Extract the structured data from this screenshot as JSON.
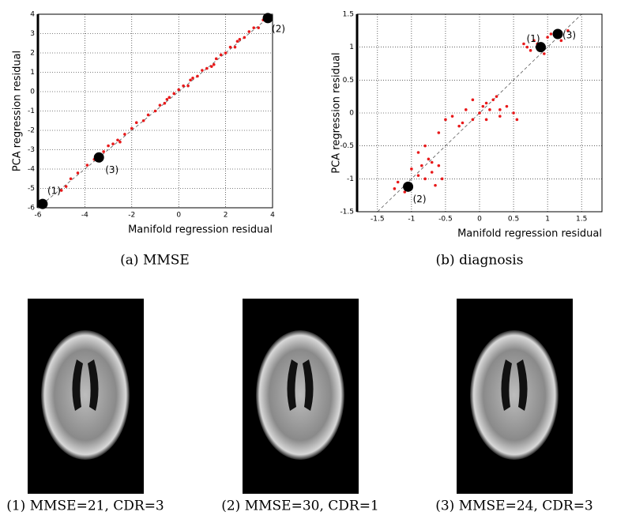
{
  "chart_data": [
    {
      "type": "scatter",
      "caption": "(a) MMSE",
      "xlabel": "Manifold regression residual",
      "ylabel": "PCA regression residual",
      "xlim": [
        -6,
        4
      ],
      "ylim": [
        -6,
        4
      ],
      "xticks": [
        -6,
        -4,
        -2,
        0,
        2,
        4
      ],
      "yticks": [
        -6,
        -5,
        -4,
        -3,
        -2,
        -1,
        0,
        1,
        2,
        3,
        4
      ],
      "grid": true,
      "diagonal": true,
      "series": [
        {
          "color": "#e8191a",
          "x": [
            -5,
            -4.8,
            -4.6,
            -4.3,
            -3.9,
            -3.6,
            -3.2,
            -3.0,
            -2.8,
            -2.5,
            -2.3,
            -2.0,
            -1.8,
            -1.5,
            -1.3,
            -1.0,
            -0.8,
            -0.6,
            -0.4,
            -0.2,
            0,
            0.2,
            0.4,
            0.6,
            0.8,
            1.0,
            1.2,
            1.4,
            1.6,
            1.8,
            2.0,
            2.2,
            2.4,
            2.6,
            2.8,
            3.0,
            3.2,
            3.4,
            3.6,
            0.5,
            -0.5,
            1.5,
            -2.6,
            2.5
          ],
          "values": [
            -5.1,
            -4.9,
            -4.5,
            -4.2,
            -3.8,
            -3.5,
            -3.1,
            -2.8,
            -2.7,
            -2.6,
            -2.2,
            -1.9,
            -1.6,
            -1.5,
            -1.2,
            -1.0,
            -0.7,
            -0.6,
            -0.3,
            -0.1,
            0.1,
            0.3,
            0.3,
            0.7,
            0.8,
            1.1,
            1.2,
            1.3,
            1.7,
            1.9,
            2.0,
            2.3,
            2.3,
            2.7,
            2.8,
            3.1,
            3.3,
            3.3,
            3.7,
            0.6,
            -0.4,
            1.4,
            -2.5,
            2.6
          ]
        }
      ],
      "highlight_color": "#000000",
      "highlights": [
        {
          "x": -5.8,
          "y": -5.8,
          "label": "(1)"
        },
        {
          "x": 3.8,
          "y": 3.8,
          "label": "(2)"
        },
        {
          "x": -3.4,
          "y": -3.4,
          "label": "(3)"
        }
      ]
    },
    {
      "type": "scatter",
      "caption": "(b) diagnosis",
      "xlabel": "Manifold regression residual",
      "ylabel": "PCA regression residual",
      "xlim": [
        -1.8,
        1.8
      ],
      "ylim": [
        -1.5,
        1.5
      ],
      "xticks": [
        -1.5,
        -1,
        -0.5,
        0,
        0.5,
        1,
        1.5
      ],
      "yticks": [
        -1.5,
        -1,
        -0.5,
        0,
        0.5,
        1,
        1.5
      ],
      "grid": true,
      "diagonal": true,
      "series": [
        {
          "color": "#e8191a",
          "x": [
            -1.2,
            -1.1,
            -1.0,
            -0.9,
            -0.85,
            -0.8,
            -0.75,
            -0.7,
            -0.65,
            -0.6,
            -0.55,
            -0.9,
            -1.25,
            -0.7,
            -0.8,
            -0.5,
            -0.4,
            -0.3,
            -0.2,
            -0.1,
            0,
            0.05,
            0.1,
            0.15,
            0.2,
            0.25,
            0.3,
            0.4,
            0.5,
            -0.25,
            0.1,
            0.3,
            -0.1,
            0.55,
            -0.6,
            0.7,
            0.75,
            0.8,
            0.85,
            0.95,
            1.0,
            1.05,
            1.2,
            1.3,
            0.65
          ],
          "values": [
            -1.05,
            -1.2,
            -0.85,
            -0.95,
            -0.8,
            -1.0,
            -0.7,
            -0.9,
            -1.1,
            -0.8,
            -1.0,
            -0.6,
            -1.15,
            -0.75,
            -0.5,
            -0.1,
            -0.05,
            -0.2,
            0.05,
            -0.1,
            0.0,
            0.1,
            0.15,
            0.05,
            0.2,
            0.25,
            -0.05,
            0.1,
            0.0,
            -0.15,
            -0.1,
            0.05,
            0.2,
            -0.1,
            -0.3,
            1.0,
            0.95,
            1.1,
            1.05,
            0.9,
            1.15,
            1.2,
            1.1,
            1.25,
            1.05
          ]
        }
      ],
      "highlight_color": "#000000",
      "highlights": [
        {
          "x": 0.9,
          "y": 1.0,
          "label": "(1)"
        },
        {
          "x": -1.05,
          "y": -1.12,
          "label": "(2)"
        },
        {
          "x": 1.15,
          "y": 1.2,
          "label": "(3)"
        }
      ]
    }
  ],
  "images": [
    {
      "caption": "(1) MMSE=21, CDR=3"
    },
    {
      "caption": "(2) MMSE=30, CDR=1"
    },
    {
      "caption": "(3) MMSE=24, CDR=3"
    }
  ]
}
